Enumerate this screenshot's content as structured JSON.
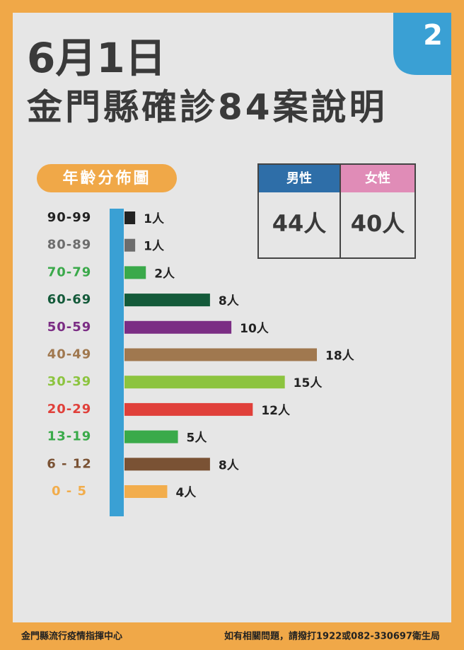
{
  "header": {
    "date": "6月1日",
    "title": "金門縣確診84案說明",
    "badge": "2"
  },
  "chart_data": {
    "type": "bar",
    "orientation": "horizontal",
    "title": "年齡分佈圖",
    "categories": [
      "90-99",
      "80-89",
      "70-79",
      "60-69",
      "50-59",
      "40-49",
      "30-39",
      "20-29",
      "13-19",
      "6 - 12",
      "0 - 5"
    ],
    "values": [
      1,
      1,
      2,
      8,
      10,
      18,
      15,
      12,
      5,
      8,
      4
    ],
    "value_labels": [
      "1人",
      "1人",
      "2人",
      "8人",
      "10人",
      "18人",
      "15人",
      "12人",
      "5人",
      "8人",
      "4人"
    ],
    "colors": [
      "#222222",
      "#6d6d6d",
      "#3aa94a",
      "#145a3a",
      "#7b2d84",
      "#a0784f",
      "#8cc43f",
      "#e0403a",
      "#3aaa4a",
      "#7a5234",
      "#f2ad4c"
    ]
  },
  "gender_table": {
    "headers": [
      "男性",
      "女性"
    ],
    "values": [
      "44人",
      "40人"
    ]
  },
  "footer": {
    "left": "金門縣流行疫情指揮中心",
    "right": "如有相關問題，請撥打1922或082-330697衛生局"
  }
}
